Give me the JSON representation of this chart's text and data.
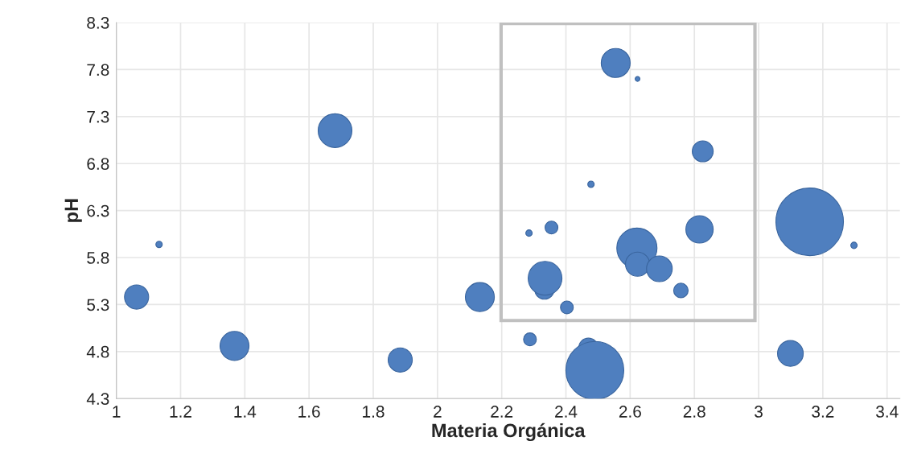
{
  "chart_data": {
    "type": "bubble",
    "xlabel": "Materia Orgánica",
    "ylabel": "pH",
    "x": [
      1.063,
      1.133,
      1.368,
      1.681,
      1.884,
      2.132,
      2.288,
      2.285,
      2.355,
      2.333,
      2.335,
      2.403,
      2.478,
      2.47,
      2.49,
      2.555,
      2.623,
      2.621,
      2.623,
      2.691,
      2.758,
      2.816,
      2.826,
      3.159,
      3.099,
      3.297
    ],
    "values": [
      5.38,
      5.94,
      4.86,
      7.15,
      4.71,
      5.38,
      4.93,
      6.06,
      6.12,
      5.46,
      5.58,
      5.27,
      6.58,
      4.84,
      4.6,
      7.87,
      7.7,
      5.9,
      5.73,
      5.68,
      5.45,
      6.1,
      6.93,
      6.18,
      4.78,
      5.93
    ],
    "sizes": [
      0.128,
      0.009,
      0.184,
      0.25,
      0.128,
      0.184,
      0.036,
      0.009,
      0.036,
      0.082,
      0.25,
      0.036,
      0.009,
      0.082,
      0.735,
      0.184,
      0.005,
      0.354,
      0.128,
      0.145,
      0.046,
      0.164,
      0.096,
      1,
      0.145,
      0.009
    ],
    "color": "#4f7fbf",
    "xlim": [
      1,
      3.44
    ],
    "xticks": [
      1,
      1.2,
      1.4,
      1.6,
      1.8,
      2,
      2.2,
      2.4,
      2.6,
      2.8,
      3,
      3.2,
      3.4
    ],
    "ylim": [
      4.3,
      8.3
    ],
    "yticks": [
      {
        "value": 4.3,
        "label": "4.3"
      },
      {
        "value": 4.8,
        "label": "4.8"
      },
      {
        "value": 5.3,
        "label": "5.3"
      },
      {
        "value": 5.8,
        "label": "5.8"
      },
      {
        "value": 6.3,
        "label": "6.3"
      },
      {
        "value": 6.8,
        "label": "6.8"
      },
      {
        "value": 7.3,
        "label": "7.3"
      },
      {
        "value": 7.8,
        "label": "7.8"
      },
      {
        "value": 8.3,
        "label": "8.3"
      }
    ],
    "grid": true
  }
}
